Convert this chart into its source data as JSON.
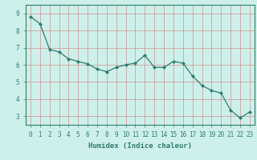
{
  "x": [
    0,
    1,
    2,
    3,
    4,
    5,
    6,
    7,
    8,
    9,
    10,
    11,
    12,
    13,
    14,
    15,
    16,
    17,
    18,
    19,
    20,
    21,
    22,
    23
  ],
  "y": [
    8.8,
    8.4,
    6.9,
    6.75,
    6.35,
    6.2,
    6.05,
    5.75,
    5.6,
    5.85,
    6.0,
    6.1,
    6.55,
    5.85,
    5.85,
    6.2,
    6.1,
    5.35,
    4.8,
    4.5,
    4.35,
    3.35,
    2.9,
    3.25
  ],
  "line_color": "#2e7d6e",
  "marker": "D",
  "marker_size": 2.2,
  "bg_color": "#cef0ea",
  "grid_color": "#d08080",
  "xlabel": "Humidex (Indice chaleur)",
  "ylabel": "",
  "xlim": [
    -0.5,
    23.5
  ],
  "ylim": [
    2.5,
    9.5
  ],
  "yticks": [
    3,
    4,
    5,
    6,
    7,
    8,
    9
  ],
  "xticks": [
    0,
    1,
    2,
    3,
    4,
    5,
    6,
    7,
    8,
    9,
    10,
    11,
    12,
    13,
    14,
    15,
    16,
    17,
    18,
    19,
    20,
    21,
    22,
    23
  ],
  "tick_fontsize": 5.5,
  "xlabel_fontsize": 6.5,
  "tick_color": "#2e7d6e",
  "spine_color": "#2e7d6e"
}
